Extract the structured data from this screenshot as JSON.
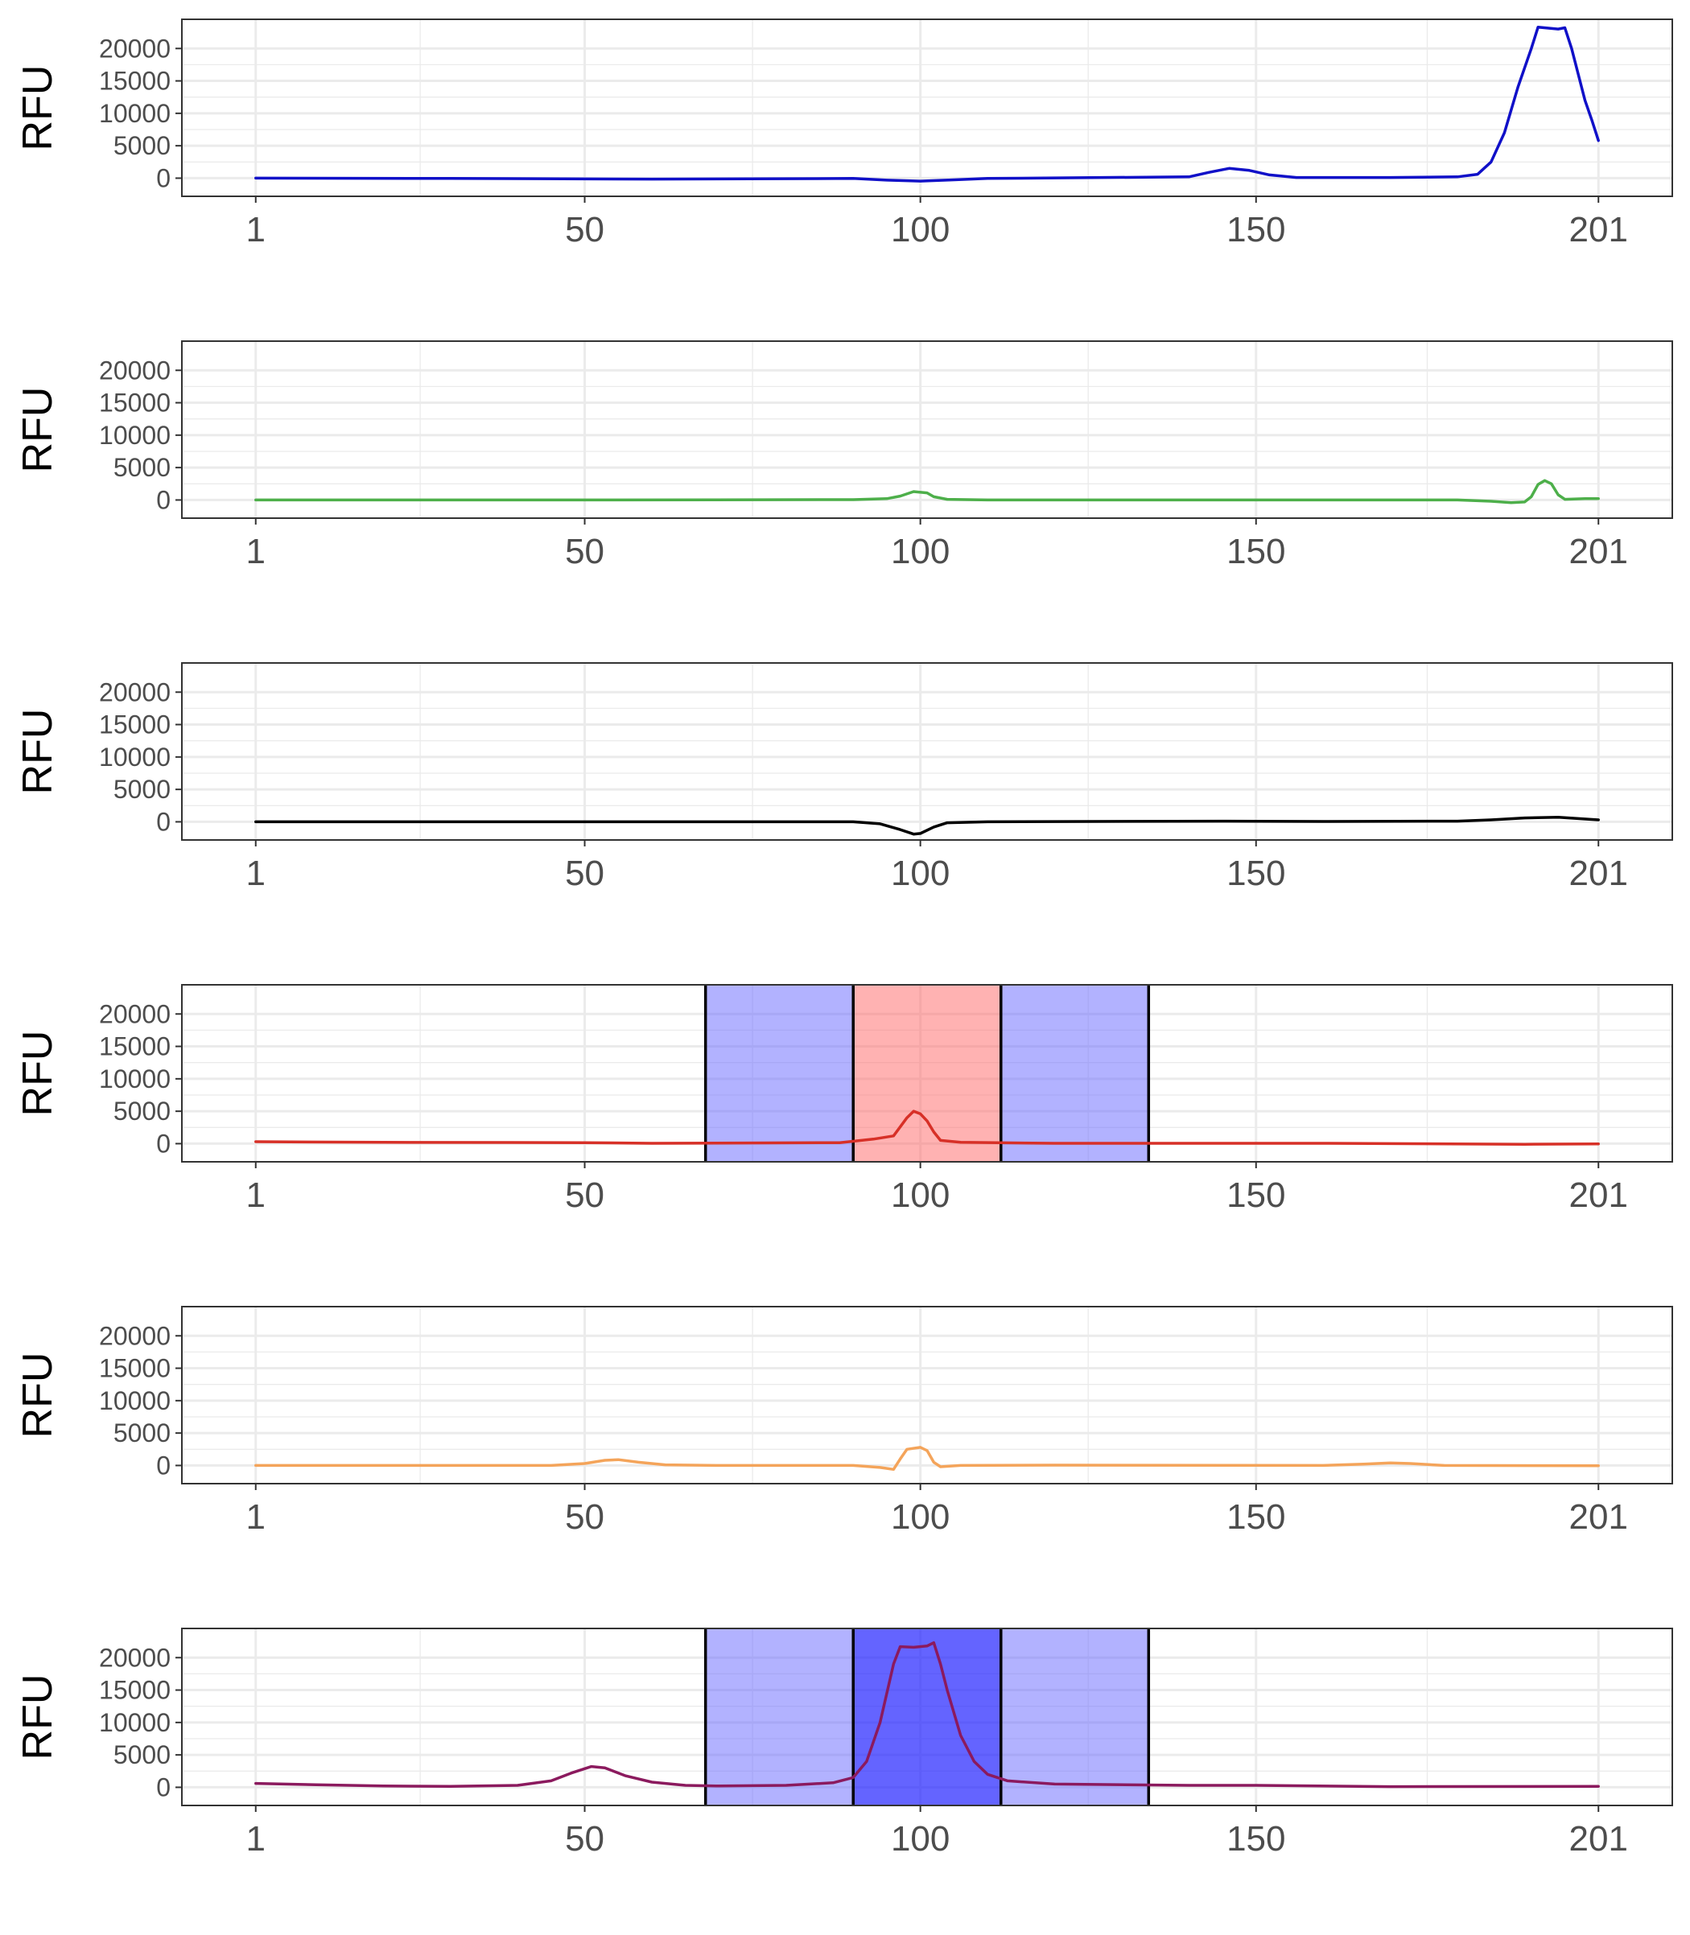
{
  "chart_data": [
    {
      "type": "line",
      "ylabel": "RFU",
      "xlabel": "",
      "title": "",
      "x_ticks": [
        1,
        50,
        100,
        150,
        201
      ],
      "x_tick_labels": [
        "1",
        "50",
        "100",
        "150",
        "201"
      ],
      "xlim": [
        -10,
        212
      ],
      "y_ticks": [
        0,
        5000,
        10000,
        15000,
        20000
      ],
      "y_tick_labels": [
        "0",
        "5000",
        "10000",
        "15000",
        "20000"
      ],
      "ylim": [
        -2800,
        24500
      ],
      "grid": true,
      "series": [
        {
          "color": "#1010C8",
          "points": [
            [
              1,
              0
            ],
            [
              30,
              -50
            ],
            [
              60,
              -150
            ],
            [
              90,
              -50
            ],
            [
              95,
              -300
            ],
            [
              100,
              -450
            ],
            [
              105,
              -250
            ],
            [
              110,
              -50
            ],
            [
              140,
              200
            ],
            [
              143,
              900
            ],
            [
              146,
              1500
            ],
            [
              149,
              1200
            ],
            [
              152,
              500
            ],
            [
              156,
              100
            ],
            [
              170,
              100
            ],
            [
              180,
              200
            ],
            [
              183,
              600
            ],
            [
              185,
              2500
            ],
            [
              187,
              7000
            ],
            [
              189,
              14000
            ],
            [
              191,
              20000
            ],
            [
              192,
              23300
            ],
            [
              195,
              23000
            ],
            [
              196,
              23200
            ],
            [
              197,
              20000
            ],
            [
              199,
              12000
            ],
            [
              200,
              9000
            ],
            [
              201,
              5800
            ]
          ]
        }
      ],
      "shaded_regions": []
    },
    {
      "type": "line",
      "ylabel": "RFU",
      "xlabel": "",
      "title": "",
      "x_ticks": [
        1,
        50,
        100,
        150,
        201
      ],
      "x_tick_labels": [
        "1",
        "50",
        "100",
        "150",
        "201"
      ],
      "xlim": [
        -10,
        212
      ],
      "y_ticks": [
        0,
        5000,
        10000,
        15000,
        20000
      ],
      "y_tick_labels": [
        "0",
        "5000",
        "10000",
        "15000",
        "20000"
      ],
      "ylim": [
        -2800,
        24500
      ],
      "grid": true,
      "series": [
        {
          "color": "#4DAF4A",
          "points": [
            [
              1,
              0
            ],
            [
              50,
              0
            ],
            [
              90,
              50
            ],
            [
              95,
              200
            ],
            [
              97,
              600
            ],
            [
              99,
              1300
            ],
            [
              101,
              1100
            ],
            [
              102,
              500
            ],
            [
              104,
              100
            ],
            [
              110,
              0
            ],
            [
              180,
              0
            ],
            [
              185,
              -200
            ],
            [
              188,
              -400
            ],
            [
              190,
              -300
            ],
            [
              191,
              500
            ],
            [
              192,
              2400
            ],
            [
              193,
              3000
            ],
            [
              194,
              2500
            ],
            [
              195,
              800
            ],
            [
              196,
              100
            ],
            [
              199,
              200
            ],
            [
              201,
              200
            ]
          ]
        }
      ],
      "shaded_regions": []
    },
    {
      "type": "line",
      "ylabel": "RFU",
      "xlabel": "",
      "title": "",
      "x_ticks": [
        1,
        50,
        100,
        150,
        201
      ],
      "x_tick_labels": [
        "1",
        "50",
        "100",
        "150",
        "201"
      ],
      "xlim": [
        -10,
        212
      ],
      "y_ticks": [
        0,
        5000,
        10000,
        15000,
        20000
      ],
      "y_tick_labels": [
        "0",
        "5000",
        "10000",
        "15000",
        "20000"
      ],
      "ylim": [
        -2800,
        24500
      ],
      "grid": true,
      "series": [
        {
          "color": "#000000",
          "points": [
            [
              1,
              0
            ],
            [
              50,
              0
            ],
            [
              90,
              0
            ],
            [
              94,
              -300
            ],
            [
              97,
              -1200
            ],
            [
              99,
              -1900
            ],
            [
              100,
              -1800
            ],
            [
              102,
              -800
            ],
            [
              104,
              -150
            ],
            [
              110,
              0
            ],
            [
              145,
              100
            ],
            [
              160,
              50
            ],
            [
              180,
              100
            ],
            [
              185,
              300
            ],
            [
              190,
              600
            ],
            [
              195,
              700
            ],
            [
              201,
              300
            ]
          ]
        }
      ],
      "shaded_regions": []
    },
    {
      "type": "line",
      "ylabel": "RFU",
      "xlabel": "",
      "title": "",
      "x_ticks": [
        1,
        50,
        100,
        150,
        201
      ],
      "x_tick_labels": [
        "1",
        "50",
        "100",
        "150",
        "201"
      ],
      "xlim": [
        -10,
        212
      ],
      "y_ticks": [
        0,
        5000,
        10000,
        15000,
        20000
      ],
      "y_tick_labels": [
        "0",
        "5000",
        "10000",
        "15000",
        "20000"
      ],
      "ylim": [
        -2800,
        24500
      ],
      "grid": true,
      "series": [
        {
          "color": "#D73027",
          "points": [
            [
              1,
              300
            ],
            [
              20,
              200
            ],
            [
              50,
              150
            ],
            [
              60,
              50
            ],
            [
              88,
              150
            ],
            [
              93,
              700
            ],
            [
              96,
              1200
            ],
            [
              98,
              4000
            ],
            [
              99,
              5000
            ],
            [
              100,
              4600
            ],
            [
              101,
              3500
            ],
            [
              102,
              1800
            ],
            [
              103,
              500
            ],
            [
              106,
              200
            ],
            [
              120,
              50
            ],
            [
              160,
              50
            ],
            [
              190,
              -100
            ],
            [
              201,
              -50
            ]
          ]
        }
      ],
      "shaded_regions": [
        {
          "x0": 68,
          "x1": 90,
          "color": "#6666FF",
          "opacity": 0.5
        },
        {
          "x0": 90,
          "x1": 112,
          "color": "#FF6666",
          "opacity": 0.5
        },
        {
          "x0": 112,
          "x1": 134,
          "color": "#6666FF",
          "opacity": 0.5
        }
      ]
    },
    {
      "type": "line",
      "ylabel": "RFU",
      "xlabel": "",
      "title": "",
      "x_ticks": [
        1,
        50,
        100,
        150,
        201
      ],
      "x_tick_labels": [
        "1",
        "50",
        "100",
        "150",
        "201"
      ],
      "xlim": [
        -10,
        212
      ],
      "y_ticks": [
        0,
        5000,
        10000,
        15000,
        20000
      ],
      "y_tick_labels": [
        "0",
        "5000",
        "10000",
        "15000",
        "20000"
      ],
      "ylim": [
        -2800,
        24500
      ],
      "grid": true,
      "series": [
        {
          "color": "#F4A45A",
          "points": [
            [
              1,
              0
            ],
            [
              45,
              0
            ],
            [
              50,
              300
            ],
            [
              53,
              800
            ],
            [
              55,
              900
            ],
            [
              58,
              500
            ],
            [
              62,
              100
            ],
            [
              70,
              0
            ],
            [
              90,
              0
            ],
            [
              94,
              -300
            ],
            [
              96,
              -600
            ],
            [
              97,
              1000
            ],
            [
              98,
              2500
            ],
            [
              100,
              2800
            ],
            [
              101,
              2300
            ],
            [
              102,
              500
            ],
            [
              103,
              -200
            ],
            [
              106,
              0
            ],
            [
              120,
              50
            ],
            [
              160,
              0
            ],
            [
              166,
              200
            ],
            [
              170,
              400
            ],
            [
              173,
              300
            ],
            [
              178,
              0
            ],
            [
              201,
              -50
            ]
          ]
        }
      ],
      "shaded_regions": []
    },
    {
      "type": "line",
      "ylabel": "RFU",
      "xlabel": "",
      "title": "",
      "x_ticks": [
        1,
        50,
        100,
        150,
        201
      ],
      "x_tick_labels": [
        "1",
        "50",
        "100",
        "150",
        "201"
      ],
      "xlim": [
        -10,
        212
      ],
      "y_ticks": [
        0,
        5000,
        10000,
        15000,
        20000
      ],
      "y_tick_labels": [
        "0",
        "5000",
        "10000",
        "15000",
        "20000"
      ],
      "ylim": [
        -2800,
        24500
      ],
      "grid": true,
      "series": [
        {
          "color": "#8B1A5E",
          "points": [
            [
              1,
              600
            ],
            [
              10,
              400
            ],
            [
              20,
              200
            ],
            [
              30,
              150
            ],
            [
              40,
              300
            ],
            [
              45,
              1000
            ],
            [
              48,
              2200
            ],
            [
              51,
              3200
            ],
            [
              53,
              3000
            ],
            [
              56,
              1800
            ],
            [
              60,
              800
            ],
            [
              65,
              300
            ],
            [
              70,
              200
            ],
            [
              80,
              300
            ],
            [
              87,
              700
            ],
            [
              90,
              1500
            ],
            [
              92,
              4000
            ],
            [
              94,
              10000
            ],
            [
              96,
              19000
            ],
            [
              97,
              21700
            ],
            [
              99,
              21600
            ],
            [
              101,
              21800
            ],
            [
              102,
              22300
            ],
            [
              103,
              19000
            ],
            [
              104,
              15000
            ],
            [
              106,
              8000
            ],
            [
              108,
              4000
            ],
            [
              110,
              2000
            ],
            [
              113,
              1000
            ],
            [
              120,
              500
            ],
            [
              140,
              300
            ],
            [
              150,
              300
            ],
            [
              170,
              100
            ],
            [
              201,
              150
            ]
          ]
        }
      ],
      "shaded_regions": [
        {
          "x0": 68,
          "x1": 90,
          "color": "#6666FF",
          "opacity": 0.5
        },
        {
          "x0": 90,
          "x1": 112,
          "color": "#1A1AFF",
          "opacity": 0.68
        },
        {
          "x0": 112,
          "x1": 134,
          "color": "#6666FF",
          "opacity": 0.5
        }
      ]
    }
  ]
}
